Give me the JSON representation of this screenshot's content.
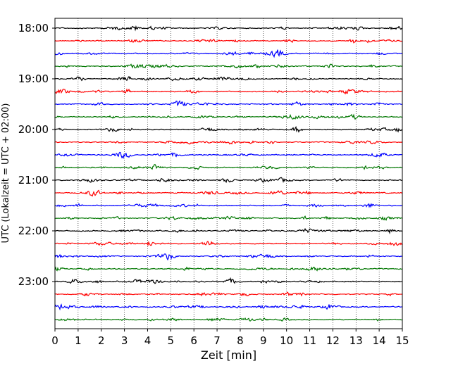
{
  "chart_data": {
    "type": "line",
    "title": "",
    "xlabel": "Zeit  [min]",
    "ylabel": "UTC (Lokalzeit = UTC + 02:00)",
    "xlim": [
      0,
      15
    ],
    "xticks": [
      "0",
      "1",
      "2",
      "3",
      "4",
      "5",
      "6",
      "7",
      "8",
      "9",
      "10",
      "11",
      "12",
      "13",
      "14",
      "15"
    ],
    "y_tick_labels": [
      "18:00",
      "19:00",
      "20:00",
      "21:00",
      "22:00",
      "23:00"
    ],
    "trace_interval_min": 15,
    "start_time": "18:00",
    "trace_count": 24,
    "trace_colors": [
      "#000000",
      "#ff0000",
      "#0000ff",
      "#007700"
    ],
    "grid": "vertical dotted lines at each minute",
    "legend": "none"
  }
}
